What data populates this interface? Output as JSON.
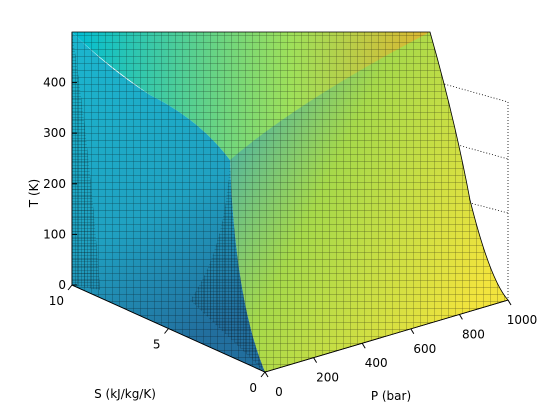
{
  "chart_data": {
    "type": "surface",
    "title": "",
    "axes": {
      "x": {
        "label": "P (bar)",
        "range": [
          0,
          1000
        ],
        "ticks": [
          0,
          200,
          400,
          600,
          800,
          1000
        ]
      },
      "y": {
        "label": "S (kJ/kg/K)",
        "range": [
          0,
          10
        ],
        "ticks": [
          0,
          5,
          10
        ]
      },
      "z": {
        "label": "T (K)",
        "range": [
          0,
          500
        ],
        "ticks": [
          0,
          100,
          200,
          300,
          400
        ]
      }
    },
    "grid": false,
    "colormap": "jet",
    "surface_samples": [
      {
        "P": 0,
        "S": 10,
        "T": 500
      },
      {
        "P": 0,
        "S": 7,
        "T": 350
      },
      {
        "P": 0,
        "S": 5,
        "T": 250
      },
      {
        "P": 0,
        "S": 3,
        "T": 170
      },
      {
        "P": 0,
        "S": 0,
        "T": 0
      },
      {
        "P": 1000,
        "S": 10,
        "T": 480
      },
      {
        "P": 1000,
        "S": 7,
        "T": 300
      },
      {
        "P": 1000,
        "S": 4,
        "T": 130
      },
      {
        "P": 1000,
        "S": 0,
        "T": 0
      }
    ]
  }
}
